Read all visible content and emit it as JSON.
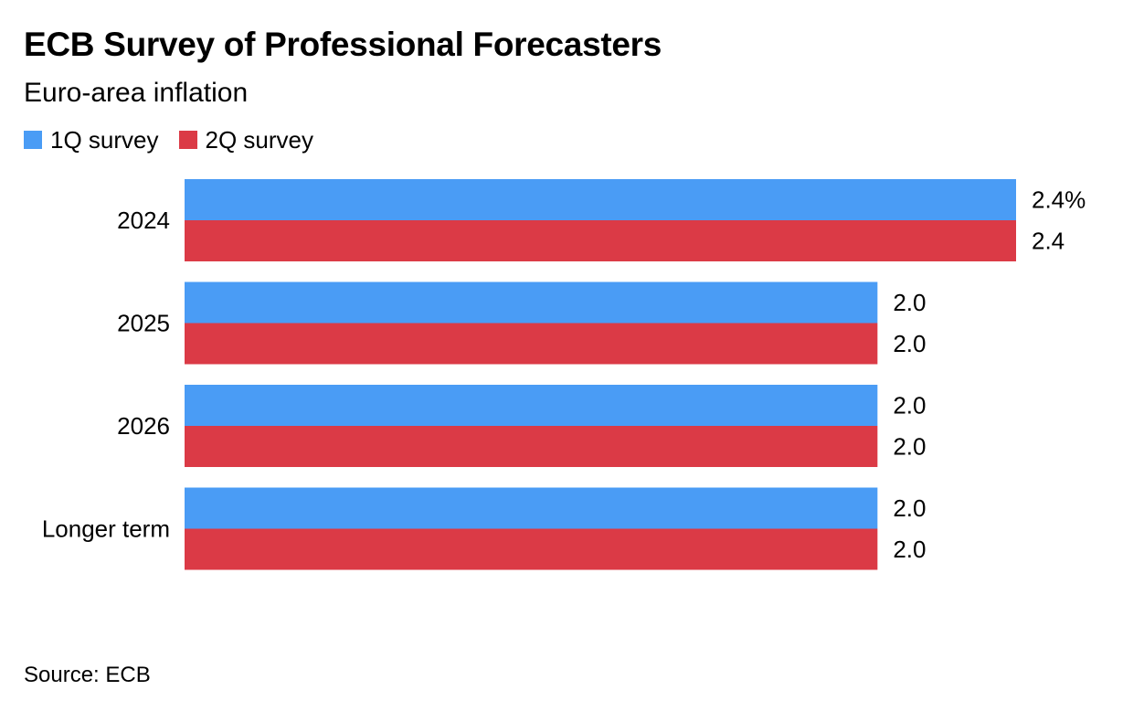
{
  "title": "ECB Survey of Professional Forecasters",
  "subtitle": "Euro-area inflation",
  "source": "Source: ECB",
  "colors": {
    "series_1": "#4a9cf5",
    "series_2": "#db3a46"
  },
  "chart_data": {
    "type": "bar",
    "orientation": "horizontal",
    "categories": [
      "2024",
      "2025",
      "2026",
      "Longer term"
    ],
    "series": [
      {
        "name": "1Q survey",
        "values": [
          2.4,
          2.0,
          2.0,
          2.0
        ],
        "labels": [
          "2.4%",
          "2.0",
          "2.0",
          "2.0"
        ]
      },
      {
        "name": "2Q survey",
        "values": [
          2.4,
          2.0,
          2.0,
          2.0
        ],
        "labels": [
          "2.4",
          "2.0",
          "2.0",
          "2.0"
        ]
      }
    ],
    "xlim": [
      0,
      2.4
    ],
    "legend_position": "top-left",
    "grid": false
  }
}
